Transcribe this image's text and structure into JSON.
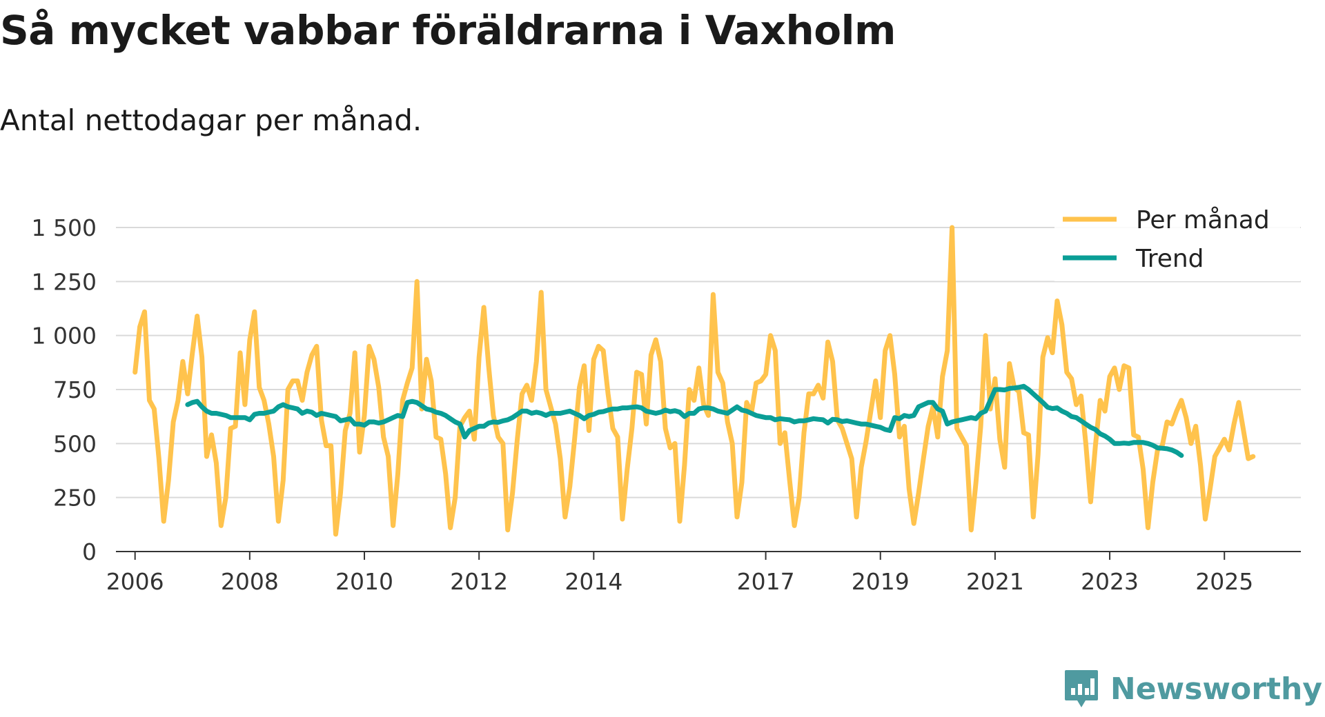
{
  "title": "Så mycket vabbar föräldrarna i Vaxholm",
  "subtitle": "Antal nettodagar per månad.",
  "brand": {
    "name": "Newsworthy",
    "icon": "newsworthy-logo-icon",
    "color": "#4f9aa0"
  },
  "chart_data": {
    "type": "line",
    "xlabel": "",
    "ylabel": "",
    "x_ticks": [
      "2006",
      "2008",
      "2010",
      "2012",
      "2014",
      "2017",
      "2019",
      "2021",
      "2023",
      "2025"
    ],
    "x_ticks_year": [
      2006,
      2008,
      2010,
      2012,
      2014,
      2017,
      2019,
      2021,
      2023,
      2025
    ],
    "y_ticks": [
      0,
      250,
      500,
      750,
      1000,
      1250,
      1500
    ],
    "y_tick_labels": [
      "0",
      "250",
      "500",
      "750",
      "1 000",
      "1 250",
      "1 500"
    ],
    "ylim": [
      0,
      1500
    ],
    "xlim": [
      "2005-09",
      "2026-05"
    ],
    "grid": true,
    "legend_position": "top-right",
    "series": [
      {
        "name": "Per månad",
        "color": "#ffc34d",
        "x_start": "2006-01",
        "values": [
          830,
          1040,
          1110,
          700,
          660,
          430,
          140,
          330,
          600,
          700,
          880,
          730,
          920,
          1090,
          900,
          440,
          540,
          410,
          120,
          250,
          570,
          580,
          920,
          680,
          980,
          1110,
          760,
          700,
          590,
          440,
          140,
          330,
          750,
          790,
          790,
          700,
          830,
          910,
          950,
          610,
          490,
          490,
          80,
          270,
          560,
          640,
          920,
          460,
          630,
          950,
          890,
          760,
          530,
          440,
          120,
          360,
          700,
          780,
          850,
          1250,
          660,
          890,
          790,
          530,
          520,
          360,
          110,
          250,
          580,
          620,
          650,
          520,
          900,
          1130,
          860,
          630,
          530,
          500,
          100,
          270,
          520,
          730,
          770,
          700,
          880,
          1200,
          750,
          670,
          590,
          430,
          160,
          300,
          520,
          760,
          860,
          560,
          890,
          950,
          930,
          730,
          570,
          530,
          150,
          380,
          570,
          830,
          820,
          590,
          910,
          980,
          880,
          570,
          480,
          500,
          140,
          400,
          750,
          700,
          850,
          680,
          630,
          1190,
          830,
          780,
          600,
          500,
          160,
          320,
          690,
          640,
          780,
          790,
          820,
          1000,
          930,
          500,
          550,
          330,
          120,
          250,
          550,
          730,
          730,
          770,
          710,
          970,
          880,
          610,
          570,
          500,
          430,
          160,
          390,
          510,
          650,
          790,
          620,
          930,
          1000,
          820,
          530,
          580,
          290,
          130,
          270,
          430,
          580,
          670,
          530,
          810,
          930,
          1500,
          570,
          530,
          490,
          100,
          320,
          580,
          1000,
          660,
          800,
          520,
          390,
          870,
          760,
          740,
          550,
          540,
          160,
          450,
          900,
          990,
          920,
          1160,
          1050,
          830,
          800,
          680,
          720,
          500,
          230,
          490,
          700,
          650,
          810,
          850,
          750,
          860,
          850,
          540,
          530,
          380,
          110,
          320,
          470,
          490,
          600,
          590,
          650,
          700,
          620,
          500,
          580,
          400,
          150,
          290,
          440,
          480,
          520,
          470,
          590,
          690,
          560,
          430,
          440
        ]
      },
      {
        "name": "Trend",
        "color": "#0a9e96",
        "x_start": "2006-12",
        "values": [
          680,
          690,
          695,
          670,
          650,
          640,
          640,
          635,
          630,
          620,
          620,
          620,
          620,
          610,
          635,
          640,
          640,
          645,
          650,
          670,
          680,
          670,
          665,
          660,
          640,
          650,
          645,
          630,
          640,
          635,
          630,
          625,
          605,
          610,
          615,
          590,
          590,
          585,
          600,
          600,
          595,
          600,
          610,
          620,
          630,
          625,
          690,
          695,
          690,
          675,
          660,
          655,
          645,
          640,
          630,
          615,
          600,
          590,
          530,
          560,
          570,
          580,
          580,
          595,
          600,
          598,
          605,
          610,
          620,
          635,
          650,
          650,
          640,
          645,
          640,
          630,
          640,
          640,
          640,
          645,
          650,
          640,
          630,
          615,
          630,
          635,
          645,
          648,
          655,
          660,
          660,
          665,
          665,
          668,
          670,
          665,
          650,
          645,
          640,
          645,
          655,
          648,
          652,
          645,
          625,
          640,
          640,
          660,
          665,
          665,
          660,
          650,
          645,
          640,
          655,
          670,
          655,
          650,
          640,
          630,
          625,
          620,
          620,
          610,
          615,
          612,
          610,
          600,
          605,
          605,
          610,
          615,
          612,
          610,
          595,
          612,
          610,
          602,
          605,
          600,
          595,
          590,
          590,
          585,
          580,
          575,
          565,
          560,
          620,
          615,
          630,
          625,
          630,
          670,
          680,
          690,
          690,
          660,
          650,
          590,
          600,
          605,
          610,
          615,
          620,
          615,
          640,
          650,
          700,
          750,
          750,
          748,
          755,
          757,
          760,
          765,
          750,
          730,
          710,
          690,
          668,
          662,
          665,
          650,
          640,
          625,
          620,
          605,
          590,
          575,
          565,
          545,
          535,
          520,
          500,
          500,
          502,
          500,
          505,
          505,
          505,
          500,
          492,
          480,
          478,
          476,
          470,
          460,
          445
        ]
      }
    ]
  }
}
